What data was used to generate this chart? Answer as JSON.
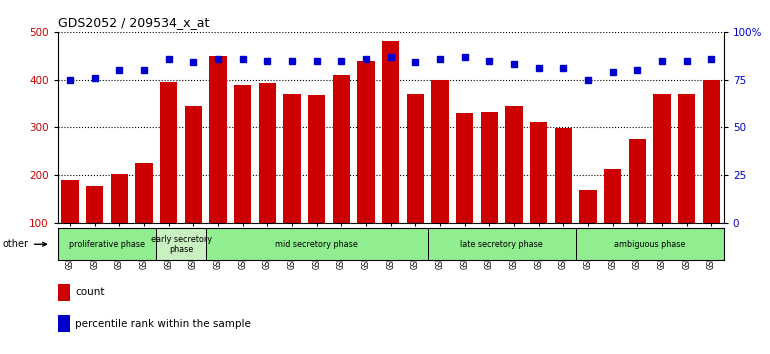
{
  "title": "GDS2052 / 209534_x_at",
  "samples": [
    "GSM109814",
    "GSM109815",
    "GSM109816",
    "GSM109817",
    "GSM109820",
    "GSM109821",
    "GSM109822",
    "GSM109824",
    "GSM109825",
    "GSM109826",
    "GSM109827",
    "GSM109828",
    "GSM109829",
    "GSM109830",
    "GSM109831",
    "GSM109834",
    "GSM109835",
    "GSM109836",
    "GSM109837",
    "GSM109838",
    "GSM109839",
    "GSM109818",
    "GSM109819",
    "GSM109823",
    "GSM109832",
    "GSM109833",
    "GSM109840"
  ],
  "counts": [
    190,
    178,
    202,
    225,
    395,
    345,
    450,
    388,
    393,
    370,
    368,
    410,
    440,
    480,
    370,
    400,
    330,
    332,
    345,
    312,
    298,
    170,
    213,
    275,
    370,
    370,
    400
  ],
  "percentiles": [
    75,
    76,
    80,
    80,
    86,
    84,
    86,
    86,
    85,
    85,
    85,
    85,
    86,
    87,
    84,
    86,
    87,
    85,
    83,
    81,
    81,
    75,
    79,
    80,
    85,
    85,
    86
  ],
  "phases": [
    {
      "label": "proliferative phase",
      "start": 0,
      "end": 4,
      "color": "#90EE90"
    },
    {
      "label": "early secretory\nphase",
      "start": 4,
      "end": 6,
      "color": "#c8f0c0"
    },
    {
      "label": "mid secretory phase",
      "start": 6,
      "end": 15,
      "color": "#90EE90"
    },
    {
      "label": "late secretory phase",
      "start": 15,
      "end": 21,
      "color": "#90EE90"
    },
    {
      "label": "ambiguous phase",
      "start": 21,
      "end": 27,
      "color": "#90EE90"
    }
  ],
  "bar_color": "#CC0000",
  "dot_color": "#0000CC",
  "ylim_left": [
    100,
    500
  ],
  "ylim_right": [
    0,
    100
  ],
  "yticks_left": [
    100,
    200,
    300,
    400,
    500
  ],
  "yticks_right": [
    0,
    25,
    50,
    75,
    100
  ],
  "ytick_labels_right": [
    "0",
    "25",
    "50",
    "75",
    "100%"
  ],
  "bg_color": "#ffffff",
  "grid_color": "#000000"
}
